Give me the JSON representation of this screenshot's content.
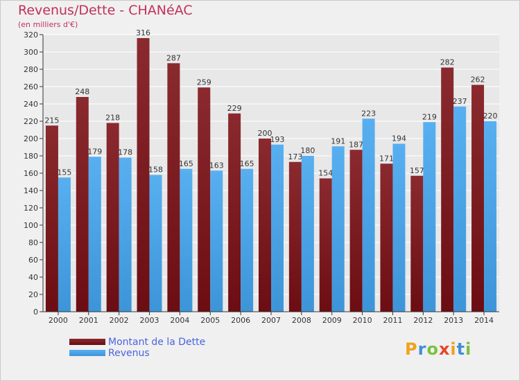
{
  "header": {
    "title": "Revenus/Dette - CHANéAC",
    "subtitle": "(en milliers d'€)"
  },
  "colors": {
    "dette": "#6b0d12",
    "dette_top": "#8a2a2f",
    "revenus": "#3d95d9",
    "revenus_top": "#58aff0",
    "grid": "#ffffff",
    "axis": "#333333"
  },
  "chart_data": {
    "type": "bar",
    "title": "Revenus/Dette - CHANéAC",
    "subtitle": "(en milliers d'€)",
    "xlabel": "",
    "ylabel": "",
    "ylim": [
      0,
      320
    ],
    "yticks": [
      0,
      20,
      40,
      60,
      80,
      100,
      120,
      140,
      160,
      180,
      200,
      220,
      240,
      260,
      280,
      300,
      320
    ],
    "grid": true,
    "categories": [
      "2000",
      "2001",
      "2002",
      "2003",
      "2004",
      "2005",
      "2006",
      "2007",
      "2008",
      "2009",
      "2010",
      "2011",
      "2012",
      "2013",
      "2014"
    ],
    "series": [
      {
        "name": "Montant de la Dette",
        "values": [
          215,
          248,
          218,
          316,
          287,
          259,
          229,
          200,
          173,
          154,
          187,
          171,
          157,
          282,
          262
        ]
      },
      {
        "name": "Revenus",
        "values": [
          155,
          179,
          178,
          158,
          165,
          163,
          165,
          193,
          180,
          191,
          223,
          194,
          219,
          237,
          220
        ]
      }
    ]
  },
  "legend": {
    "dette_label": "Montant de la Dette",
    "revenus_label": "Revenus"
  },
  "logo": {
    "letters": [
      "P",
      "r",
      "o",
      "x",
      "i",
      "t",
      "i"
    ],
    "letter_colors": [
      "#f0a21b",
      "#3f8fd8",
      "#7cc142",
      "#e8452a",
      "#f0a21b",
      "#3f8fd8",
      "#7cc142"
    ]
  }
}
